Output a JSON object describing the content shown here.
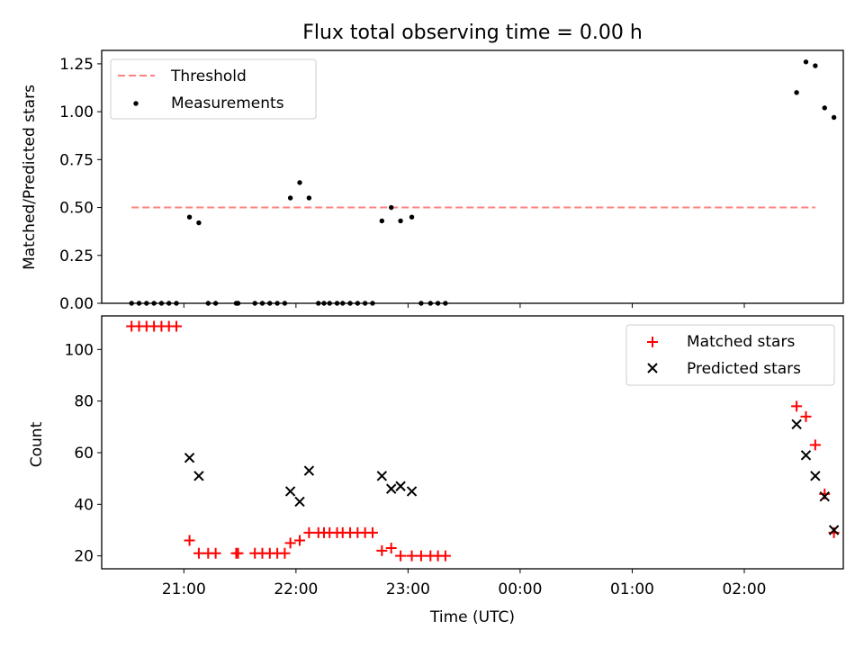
{
  "figure": {
    "title": "Flux total observing time = 0.00 h",
    "xlabel": "Time (UTC)"
  },
  "colors": {
    "threshold": "#ff8080",
    "measurements": "#000000",
    "matched": "#ff0000",
    "predicted": "#000000"
  },
  "chart_data": [
    {
      "type": "scatter",
      "panel": "top",
      "xlabel": "",
      "ylabel": "Matched/Predicted stars",
      "xlim": [
        "20:16",
        "02:53"
      ],
      "ylim": [
        0,
        1.32
      ],
      "yticks": [
        0.0,
        0.25,
        0.5,
        0.75,
        1.0,
        1.25
      ],
      "ytick_labels": [
        "0.00",
        "0.25",
        "0.50",
        "0.75",
        "1.00",
        "1.25"
      ],
      "xticks": [
        "21:00",
        "22:00",
        "23:00",
        "00:00",
        "01:00",
        "02:00"
      ],
      "legend_position": "top-left",
      "threshold": {
        "name": "Threshold",
        "y": 0.5,
        "x": [
          "20:32",
          "02:38"
        ]
      },
      "series": [
        {
          "name": "Measurements",
          "marker": "dot",
          "x": [
            "20:32",
            "20:36",
            "20:40",
            "20:44",
            "20:48",
            "20:52",
            "20:56",
            "21:03",
            "21:08",
            "21:13",
            "21:17",
            "21:28",
            "21:29",
            "21:38",
            "21:42",
            "21:46",
            "21:50",
            "21:54",
            "21:57",
            "22:02",
            "22:07",
            "22:12",
            "22:15",
            "22:18",
            "22:22",
            "22:25",
            "22:29",
            "22:33",
            "22:37",
            "22:41",
            "22:46",
            "22:51",
            "22:56",
            "23:02",
            "23:07",
            "23:12",
            "23:16",
            "23:20",
            "02:28",
            "02:33",
            "02:38",
            "02:43",
            "02:48"
          ],
          "y": [
            0,
            0,
            0,
            0,
            0,
            0,
            0,
            0.45,
            0.42,
            0,
            0,
            0,
            0,
            0,
            0,
            0,
            0,
            0,
            0.55,
            0.63,
            0.55,
            0,
            0,
            0,
            0,
            0,
            0,
            0,
            0,
            0,
            0.43,
            0.5,
            0.43,
            0.45,
            0,
            0,
            0,
            0,
            1.1,
            1.26,
            1.24,
            1.02,
            0.97
          ]
        }
      ]
    },
    {
      "type": "scatter",
      "panel": "bottom",
      "xlabel": "Time (UTC)",
      "ylabel": "Count",
      "xlim": [
        "20:16",
        "02:53"
      ],
      "ylim": [
        15,
        113
      ],
      "yticks": [
        20,
        40,
        60,
        80,
        100
      ],
      "ytick_labels": [
        "20",
        "40",
        "60",
        "80",
        "100"
      ],
      "xticks": [
        "21:00",
        "22:00",
        "23:00",
        "00:00",
        "01:00",
        "02:00"
      ],
      "legend_position": "top-right",
      "series": [
        {
          "name": "Matched stars",
          "marker": "plus",
          "x": [
            "20:32",
            "20:36",
            "20:40",
            "20:44",
            "20:48",
            "20:52",
            "20:56",
            "21:03",
            "21:08",
            "21:13",
            "21:17",
            "21:28",
            "21:29",
            "21:38",
            "21:42",
            "21:46",
            "21:50",
            "21:54",
            "21:57",
            "22:02",
            "22:07",
            "22:12",
            "22:15",
            "22:18",
            "22:22",
            "22:25",
            "22:29",
            "22:33",
            "22:37",
            "22:41",
            "22:46",
            "22:51",
            "22:56",
            "23:02",
            "23:07",
            "23:12",
            "23:16",
            "23:20",
            "02:28",
            "02:33",
            "02:38",
            "02:43",
            "02:48"
          ],
          "y": [
            109,
            109,
            109,
            109,
            109,
            109,
            109,
            26,
            21,
            21,
            21,
            21,
            21,
            21,
            21,
            21,
            21,
            21,
            25,
            26,
            29,
            29,
            29,
            29,
            29,
            29,
            29,
            29,
            29,
            29,
            22,
            23,
            20,
            20,
            20,
            20,
            20,
            20,
            78,
            74,
            63,
            44,
            29
          ]
        },
        {
          "name": "Predicted stars",
          "marker": "x",
          "x": [
            "21:03",
            "21:08",
            "21:57",
            "22:02",
            "22:07",
            "22:46",
            "22:51",
            "22:56",
            "23:02",
            "02:28",
            "02:33",
            "02:38",
            "02:43",
            "02:48"
          ],
          "y": [
            58,
            51,
            45,
            41,
            53,
            51,
            46,
            47,
            45,
            71,
            59,
            51,
            43,
            30
          ]
        }
      ]
    }
  ]
}
